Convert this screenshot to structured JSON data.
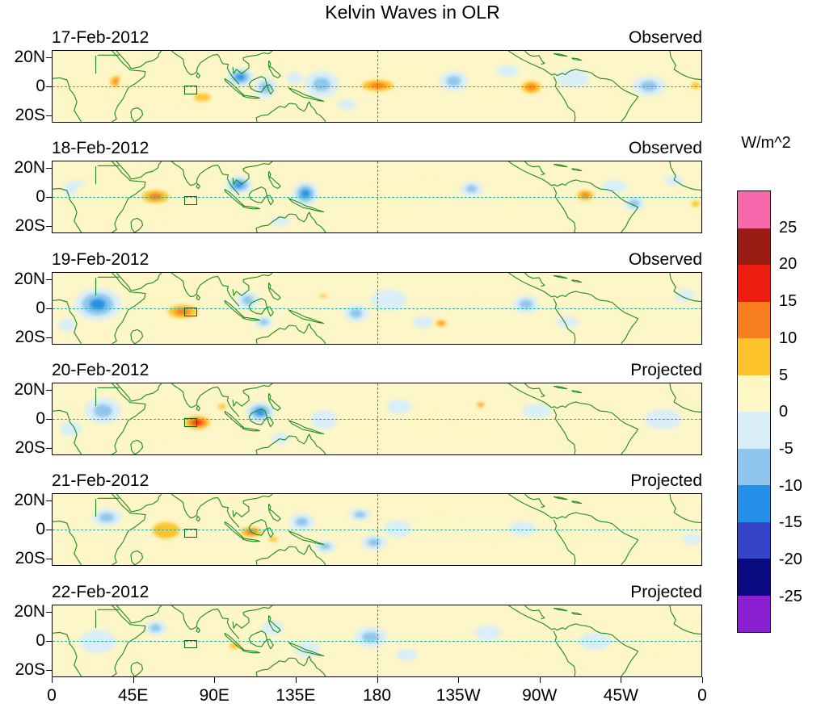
{
  "title": "Kelvin Waves in OLR",
  "colorbar": {
    "label": "W/m^2",
    "tick_values": [
      25,
      20,
      15,
      10,
      5,
      0,
      -5,
      -10,
      -15,
      -20,
      -25
    ]
  },
  "chart_data": {
    "type": "heatmap",
    "subtype": "filled-contour longitude-latitude maps, 6 stacked daily panels",
    "title": "Kelvin Waves in OLR",
    "units": "W/m^2",
    "x_axis": {
      "ticks": [
        "0",
        "45E",
        "90E",
        "135E",
        "180",
        "135W",
        "90W",
        "45W",
        "0"
      ],
      "range_deg_lon": [
        0,
        360
      ]
    },
    "y_axis": {
      "ticks": [
        "20N",
        "0",
        "20S"
      ],
      "range_deg_lat": [
        25,
        -25
      ]
    },
    "colorbar": {
      "label": "W/m^2",
      "boundaries": [
        -25,
        -20,
        -15,
        -10,
        -5,
        0,
        5,
        10,
        15,
        20,
        25
      ],
      "colors_low_to_high": [
        "#8b1fd2",
        "#0a0a80",
        "#3545c8",
        "#2590e8",
        "#8ec6ec",
        "#d9eef7",
        "#fdf6c5",
        "#fdc32a",
        "#f87d1e",
        "#ef1c12",
        "#9b1c15",
        "#f768ad"
      ]
    },
    "coastline_color": "#1e8a1e",
    "equator_line": "dashed teal at 0 latitude",
    "dateline_line": "dashed green at 180 longitude",
    "roi_box": {
      "lon": [
        73,
        80
      ],
      "lat": [
        -5,
        1
      ]
    },
    "anomaly_format": [
      "lon_deg",
      "lat_deg",
      "width_deg",
      "height_deg",
      "peak_W_per_m2"
    ],
    "panels": [
      {
        "date": "17-Feb-2012",
        "label": "Observed",
        "anomalies": [
          [
            18,
            -4,
            26,
            28,
            4
          ],
          [
            36,
            4,
            13,
            11,
            16
          ],
          [
            58,
            2,
            44,
            30,
            6
          ],
          [
            83,
            -7,
            18,
            11,
            8
          ],
          [
            104,
            7,
            15,
            13,
            -16
          ],
          [
            118,
            0,
            12,
            15,
            -8
          ],
          [
            134,
            6,
            9,
            8,
            -5
          ],
          [
            149,
            2,
            19,
            18,
            -12
          ],
          [
            163,
            -12,
            10,
            7,
            -6
          ],
          [
            180,
            1,
            26,
            11,
            14
          ],
          [
            196,
            7,
            18,
            10,
            5
          ],
          [
            222,
            4,
            16,
            14,
            -12
          ],
          [
            243,
            -7,
            14,
            9,
            5
          ],
          [
            252,
            11,
            12,
            8,
            -6
          ],
          [
            265,
            0,
            16,
            12,
            16
          ],
          [
            288,
            6,
            18,
            12,
            -4
          ],
          [
            312,
            -12,
            14,
            8,
            4
          ],
          [
            330,
            1,
            18,
            14,
            -10
          ],
          [
            356,
            1,
            10,
            9,
            12
          ]
        ]
      },
      {
        "date": "18-Feb-2012",
        "label": "Observed",
        "anomalies": [
          [
            14,
            6,
            16,
            12,
            -5
          ],
          [
            45,
            0,
            68,
            34,
            7
          ],
          [
            57,
            1,
            22,
            13,
            17
          ],
          [
            30,
            -14,
            14,
            8,
            4
          ],
          [
            103,
            9,
            15,
            12,
            -14
          ],
          [
            140,
            3,
            14,
            17,
            -13
          ],
          [
            126,
            -16,
            10,
            7,
            -6
          ],
          [
            183,
            -2,
            42,
            26,
            6
          ],
          [
            210,
            6,
            28,
            18,
            5
          ],
          [
            232,
            6,
            12,
            10,
            -12
          ],
          [
            252,
            -4,
            16,
            10,
            4
          ],
          [
            295,
            2,
            14,
            10,
            13
          ],
          [
            311,
            8,
            14,
            9,
            -5
          ],
          [
            322,
            -4,
            12,
            10,
            -8
          ],
          [
            344,
            12,
            10,
            7,
            -5
          ],
          [
            356,
            -4,
            9,
            8,
            8
          ]
        ]
      },
      {
        "date": "19-Feb-2012",
        "label": "Observed",
        "anomalies": [
          [
            25,
            3,
            26,
            22,
            -13
          ],
          [
            8,
            -11,
            10,
            8,
            -6
          ],
          [
            62,
            6,
            40,
            28,
            7
          ],
          [
            72,
            -2,
            24,
            13,
            16
          ],
          [
            108,
            6,
            12,
            12,
            -10
          ],
          [
            117,
            -9,
            10,
            8,
            -8
          ],
          [
            150,
            9,
            8,
            5,
            12
          ],
          [
            140,
            -5,
            16,
            10,
            6
          ],
          [
            168,
            -3,
            14,
            12,
            -8
          ],
          [
            186,
            6,
            20,
            14,
            -7
          ],
          [
            205,
            -9,
            12,
            8,
            -6
          ],
          [
            215,
            -10,
            9,
            6,
            13
          ],
          [
            240,
            6,
            20,
            12,
            4
          ],
          [
            262,
            3,
            14,
            12,
            -9
          ],
          [
            285,
            -9,
            12,
            8,
            -5
          ],
          [
            318,
            0,
            24,
            15,
            4
          ],
          [
            350,
            9,
            10,
            8,
            -4
          ]
        ]
      },
      {
        "date": "20-Feb-2012",
        "label": "Projected",
        "anomalies": [
          [
            28,
            6,
            20,
            18,
            -12
          ],
          [
            10,
            -6,
            12,
            10,
            -6
          ],
          [
            58,
            0,
            34,
            28,
            7
          ],
          [
            80,
            -2,
            19,
            12,
            18
          ],
          [
            94,
            9,
            9,
            7,
            12
          ],
          [
            115,
            5,
            16,
            14,
            -13
          ],
          [
            126,
            -13,
            10,
            8,
            -7
          ],
          [
            150,
            0,
            14,
            13,
            -6
          ],
          [
            172,
            -6,
            18,
            11,
            4
          ],
          [
            192,
            9,
            14,
            10,
            -5
          ],
          [
            207,
            0,
            26,
            16,
            6
          ],
          [
            237,
            10,
            6,
            5,
            14
          ],
          [
            230,
            -6,
            20,
            12,
            5
          ],
          [
            268,
            6,
            16,
            10,
            -4
          ],
          [
            300,
            -11,
            16,
            10,
            4
          ],
          [
            338,
            0,
            20,
            14,
            -5
          ],
          [
            355,
            11,
            9,
            6,
            5
          ]
        ]
      },
      {
        "date": "21-Feb-2012",
        "label": "Projected",
        "anomalies": [
          [
            30,
            9,
            16,
            12,
            -10
          ],
          [
            18,
            -11,
            18,
            10,
            5
          ],
          [
            63,
            0,
            30,
            22,
            8
          ],
          [
            110,
            -1,
            18,
            10,
            16
          ],
          [
            122,
            -6,
            10,
            7,
            12
          ],
          [
            138,
            6,
            14,
            12,
            -12
          ],
          [
            151,
            -11,
            12,
            8,
            -8
          ],
          [
            170,
            11,
            12,
            8,
            -9
          ],
          [
            178,
            -8,
            14,
            10,
            -8
          ],
          [
            191,
            1,
            14,
            12,
            -6
          ],
          [
            215,
            6,
            24,
            14,
            5
          ],
          [
            235,
            -9,
            16,
            10,
            4
          ],
          [
            260,
            1,
            14,
            10,
            -4
          ],
          [
            290,
            -6,
            20,
            12,
            4
          ],
          [
            330,
            5,
            20,
            12,
            5
          ],
          [
            354,
            -6,
            10,
            8,
            -4
          ]
        ]
      },
      {
        "date": "22-Feb-2012",
        "label": "Projected",
        "anomalies": [
          [
            25,
            0,
            20,
            16,
            -5
          ],
          [
            57,
            9,
            12,
            10,
            -8
          ],
          [
            95,
            1,
            24,
            16,
            6
          ],
          [
            101,
            -3,
            12,
            8,
            8
          ],
          [
            122,
            9,
            12,
            10,
            -7
          ],
          [
            141,
            -6,
            14,
            10,
            -5
          ],
          [
            176,
            3,
            18,
            14,
            -8
          ],
          [
            196,
            -9,
            12,
            8,
            -4
          ],
          [
            215,
            1,
            20,
            12,
            4
          ],
          [
            241,
            6,
            14,
            10,
            -4
          ],
          [
            265,
            -6,
            16,
            10,
            3
          ],
          [
            300,
            0,
            18,
            12,
            -4
          ],
          [
            335,
            -3,
            18,
            12,
            4
          ],
          [
            355,
            9,
            10,
            8,
            4
          ]
        ]
      }
    ]
  }
}
